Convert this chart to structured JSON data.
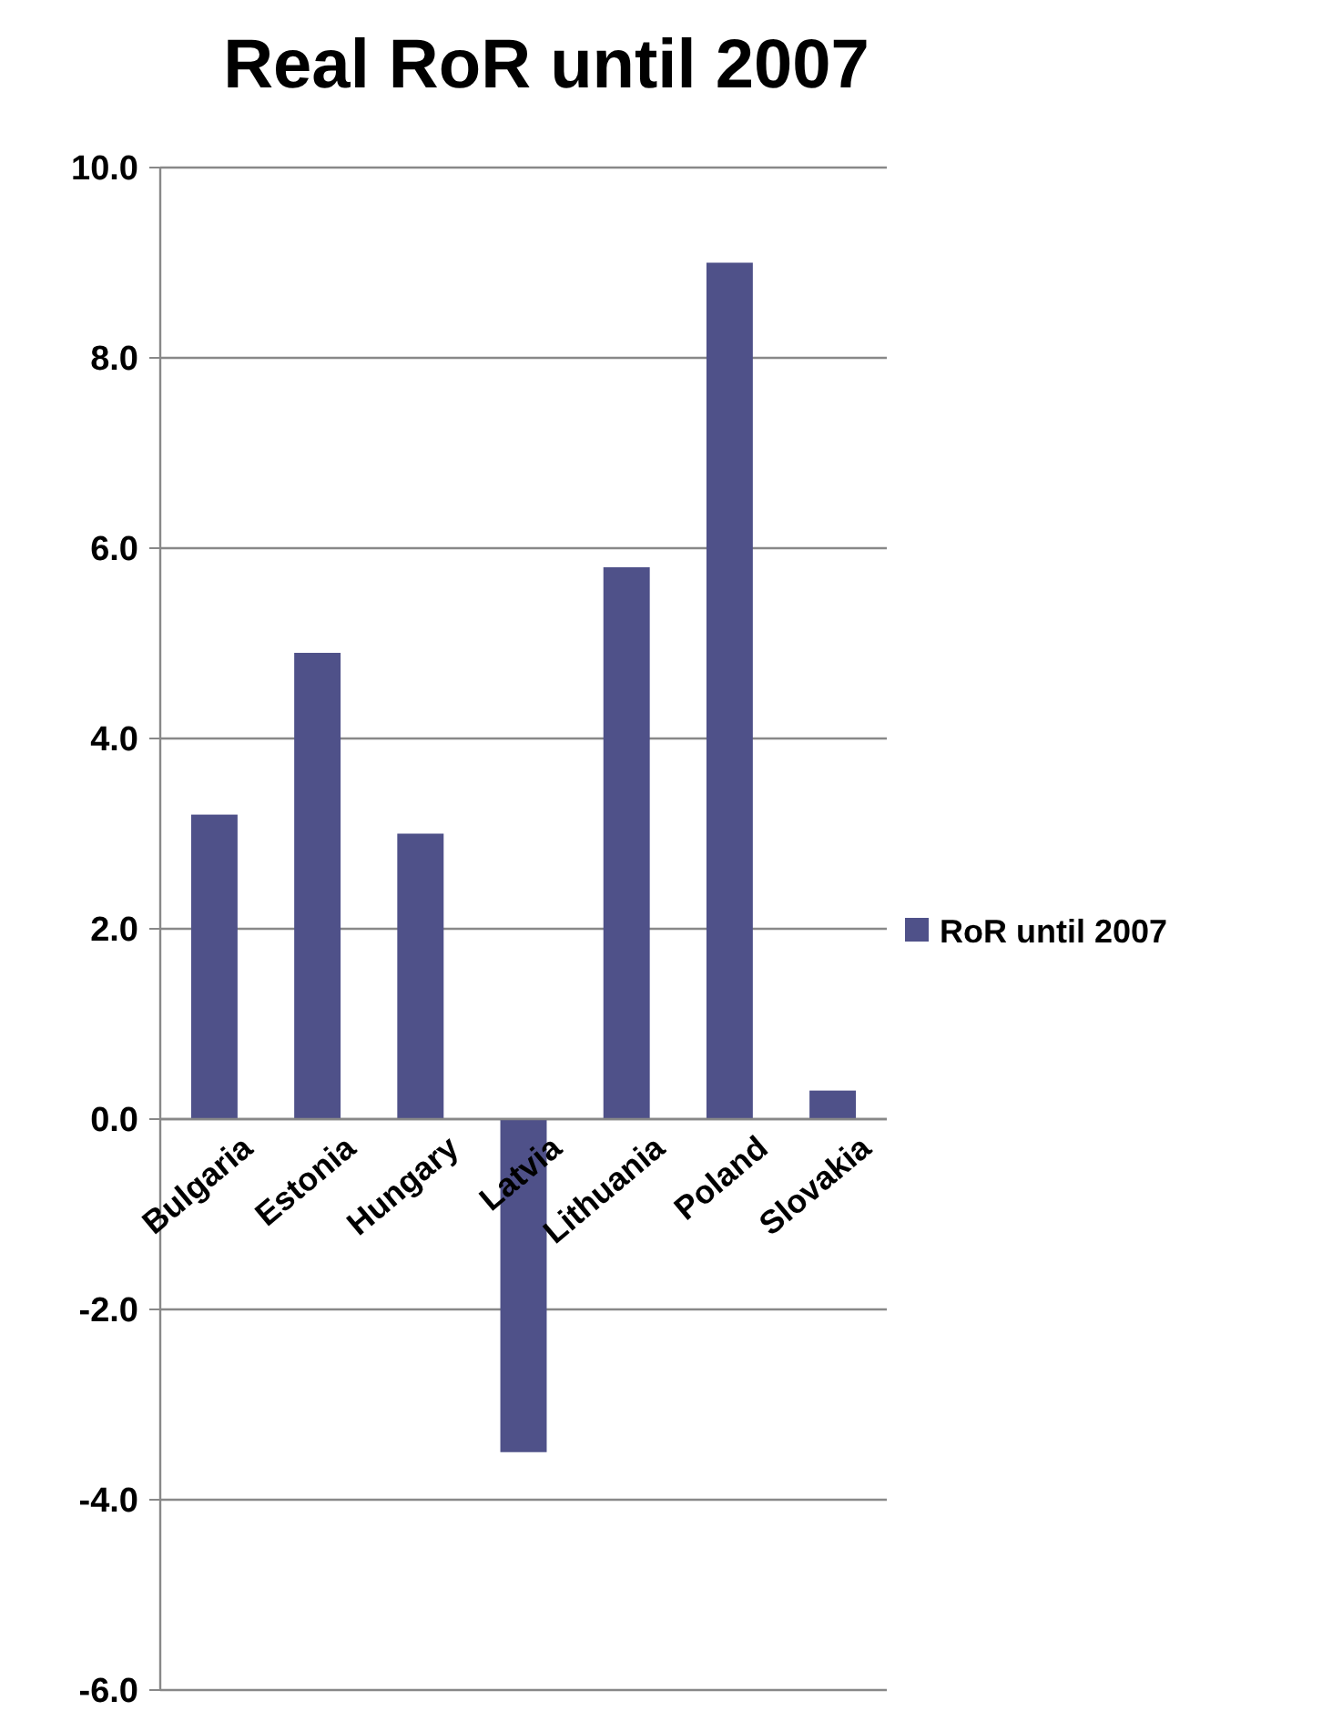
{
  "chart_data": {
    "type": "bar",
    "title": "Real RoR until 2007",
    "categories": [
      "Bulgaria",
      "Estonia",
      "Hungary",
      "Latvia",
      "Lithuania",
      "Poland",
      "Slovakia"
    ],
    "series": [
      {
        "name": "RoR until 2007",
        "color": "#4f5189",
        "values": [
          3.2,
          4.9,
          3.0,
          -3.5,
          5.8,
          9.0,
          0.3
        ]
      }
    ],
    "ylim": [
      -6,
      10
    ],
    "yticks": [
      {
        "value": -6,
        "label": "-6.0"
      },
      {
        "value": -4,
        "label": "-4.0"
      },
      {
        "value": -2,
        "label": "-2.0"
      },
      {
        "value": 0,
        "label": "0.0"
      },
      {
        "value": 2,
        "label": "2.0"
      },
      {
        "value": 4,
        "label": "4.0"
      },
      {
        "value": 6,
        "label": "6.0"
      },
      {
        "value": 8,
        "label": "8.0"
      },
      {
        "value": 10,
        "label": "10.0"
      }
    ],
    "grid": "y",
    "legend": "right"
  }
}
